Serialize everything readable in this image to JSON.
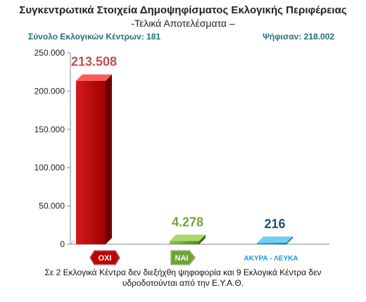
{
  "title": "Συγκεντρωτικά Στοιχεία Δημοψηφίσματος Εκλογικής Περιφέρειας",
  "subtitle": "-Τελικά Αποτελέσματα –",
  "stats": {
    "centers": "Σύνολο Εκλογικών Κέντρων: 181",
    "voted": "Ψήφισαν: 218.002"
  },
  "footnote": {
    "line1": "Σε 2 Εκλογικά Κέντρα δεν διεξήχθη ψηφοφορία και 9 Εκλογικά Κέντρα δεν",
    "line2": "υδροδοτούνται από την Ε.Υ.Α.Θ."
  },
  "chart_data": {
    "type": "bar",
    "categories": [
      "ΟΧΙ",
      "ΝΑΙ",
      "ΑΚΥΡΑ - ΛΕΥΚΑ"
    ],
    "values": [
      213508,
      4278,
      216
    ],
    "value_labels": [
      "213.508",
      "4.278",
      "216"
    ],
    "ylim": [
      0,
      250000
    ],
    "yticks": [
      0,
      50000,
      100000,
      150000,
      200000,
      250000
    ],
    "ytick_labels": [
      "0",
      "50.000",
      "100.000",
      "150.000",
      "200.000",
      "250.000"
    ],
    "grid": false,
    "legend": "none",
    "colors": {
      "no": "#c00000",
      "yes": "#6aa62c",
      "blank": "#1a9ad6",
      "no_label": "#c0504d",
      "yes_label": "#77a23a",
      "blank_label": "#1f4e79"
    }
  }
}
